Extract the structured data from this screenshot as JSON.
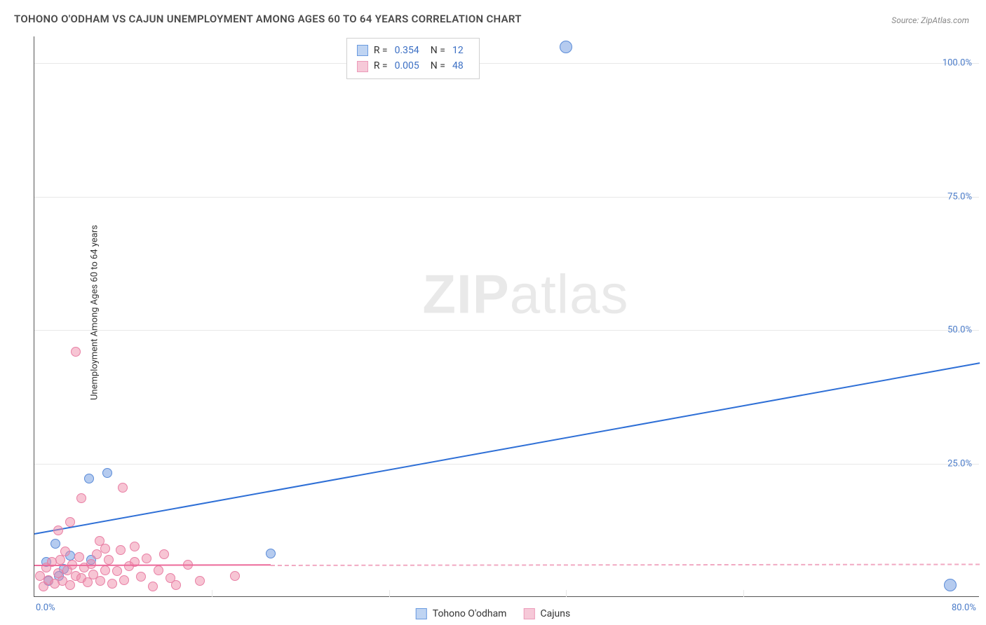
{
  "title": "TOHONO O'ODHAM VS CAJUN UNEMPLOYMENT AMONG AGES 60 TO 64 YEARS CORRELATION CHART",
  "source": "Source: ZipAtlas.com",
  "y_axis_label": "Unemployment Among Ages 60 to 64 years",
  "watermark_bold": "ZIP",
  "watermark_light": "atlas",
  "chart": {
    "type": "scatter",
    "xlim": [
      0,
      80
    ],
    "ylim": [
      0,
      105
    ],
    "x_tick_positions": [
      0,
      15,
      30,
      45,
      60,
      80
    ],
    "x_tick_labels": {
      "0": "0.0%",
      "80": "80.0%"
    },
    "y_ticks": [
      25,
      50,
      75,
      100
    ],
    "y_tick_labels": {
      "25": "25.0%",
      "50": "50.0%",
      "75": "75.0%",
      "100": "100.0%"
    },
    "background_color": "#ffffff",
    "grid_color": "#e8e8e8",
    "axis_color": "#555555"
  },
  "series": [
    {
      "name": "Tohono O'odham",
      "label": "Tohono O'odham",
      "color_fill": "rgba(120,160,225,0.55)",
      "color_stroke": "#5a8bd8",
      "swatch_fill": "#bfd4f2",
      "swatch_border": "#6a9be0",
      "marker_radius": 7,
      "R": "0.354",
      "N": "12",
      "trend": {
        "x1": 0,
        "y1": 12,
        "x2": 80,
        "y2": 44,
        "color": "#2e6fd6",
        "width": 2,
        "style": "solid"
      },
      "points": [
        {
          "x": 1.0,
          "y": 6.5
        },
        {
          "x": 1.2,
          "y": 3.0
        },
        {
          "x": 1.8,
          "y": 10.0
        },
        {
          "x": 2.1,
          "y": 4.0
        },
        {
          "x": 4.8,
          "y": 7.0
        },
        {
          "x": 4.6,
          "y": 22.2
        },
        {
          "x": 6.2,
          "y": 23.2
        },
        {
          "x": 2.5,
          "y": 5.2
        },
        {
          "x": 3.0,
          "y": 7.8
        },
        {
          "x": 20.0,
          "y": 8.2
        },
        {
          "x": 45.0,
          "y": 103.0,
          "r": 9
        },
        {
          "x": 77.5,
          "y": 2.2,
          "r": 9
        }
      ]
    },
    {
      "name": "Cajuns",
      "label": "Cajuns",
      "color_fill": "rgba(240,140,170,0.50)",
      "color_stroke": "#e87fa4",
      "swatch_fill": "#f6c9d8",
      "swatch_border": "#ec9bb9",
      "marker_radius": 7,
      "R": "0.005",
      "N": "48",
      "trend_solid": {
        "x1": 0,
        "y1": 6.0,
        "x2": 20,
        "y2": 6.1,
        "color": "#ec6a9a",
        "width": 2
      },
      "trend_dash": {
        "x1": 20,
        "y1": 6.1,
        "x2": 80,
        "y2": 6.3,
        "color": "#f1a9c2",
        "width": 2
      },
      "points": [
        {
          "x": 0.5,
          "y": 4.0
        },
        {
          "x": 0.8,
          "y": 2.0
        },
        {
          "x": 1.0,
          "y": 5.5
        },
        {
          "x": 1.2,
          "y": 3.2
        },
        {
          "x": 1.5,
          "y": 6.5
        },
        {
          "x": 1.7,
          "y": 2.5
        },
        {
          "x": 2.0,
          "y": 4.5
        },
        {
          "x": 2.2,
          "y": 7.0
        },
        {
          "x": 2.4,
          "y": 3.0
        },
        {
          "x": 2.6,
          "y": 8.5
        },
        {
          "x": 2.8,
          "y": 5.0
        },
        {
          "x": 3.0,
          "y": 2.2
        },
        {
          "x": 3.2,
          "y": 6.0
        },
        {
          "x": 3.5,
          "y": 4.0
        },
        {
          "x": 3.8,
          "y": 7.5
        },
        {
          "x": 4.0,
          "y": 3.5
        },
        {
          "x": 4.2,
          "y": 5.5
        },
        {
          "x": 4.5,
          "y": 2.8
        },
        {
          "x": 4.8,
          "y": 6.2
        },
        {
          "x": 5.0,
          "y": 4.2
        },
        {
          "x": 5.3,
          "y": 8.0
        },
        {
          "x": 5.6,
          "y": 3.0
        },
        {
          "x": 6.0,
          "y": 5.0
        },
        {
          "x": 6.3,
          "y": 7.0
        },
        {
          "x": 6.6,
          "y": 2.5
        },
        {
          "x": 7.0,
          "y": 4.8
        },
        {
          "x": 7.3,
          "y": 8.8
        },
        {
          "x": 7.6,
          "y": 3.2
        },
        {
          "x": 8.0,
          "y": 5.8
        },
        {
          "x": 8.5,
          "y": 6.5
        },
        {
          "x": 9.0,
          "y": 3.8
        },
        {
          "x": 9.5,
          "y": 7.2
        },
        {
          "x": 10.0,
          "y": 2.0
        },
        {
          "x": 10.5,
          "y": 5.0
        },
        {
          "x": 11.0,
          "y": 8.0
        },
        {
          "x": 11.5,
          "y": 3.5
        },
        {
          "x": 12.0,
          "y": 2.2
        },
        {
          "x": 13.0,
          "y": 6.0
        },
        {
          "x": 14.0,
          "y": 3.0
        },
        {
          "x": 17.0,
          "y": 4.0
        },
        {
          "x": 4.0,
          "y": 18.5
        },
        {
          "x": 7.5,
          "y": 20.5
        },
        {
          "x": 2.0,
          "y": 12.5
        },
        {
          "x": 3.0,
          "y": 14.0
        },
        {
          "x": 5.5,
          "y": 10.5
        },
        {
          "x": 8.5,
          "y": 9.5
        },
        {
          "x": 6.0,
          "y": 9.0
        },
        {
          "x": 3.5,
          "y": 46.0
        }
      ]
    }
  ],
  "legend": {
    "items": [
      "Tohono O'odham",
      "Cajuns"
    ]
  },
  "stats_labels": {
    "R": "R",
    "N": "N",
    "eq": "="
  }
}
